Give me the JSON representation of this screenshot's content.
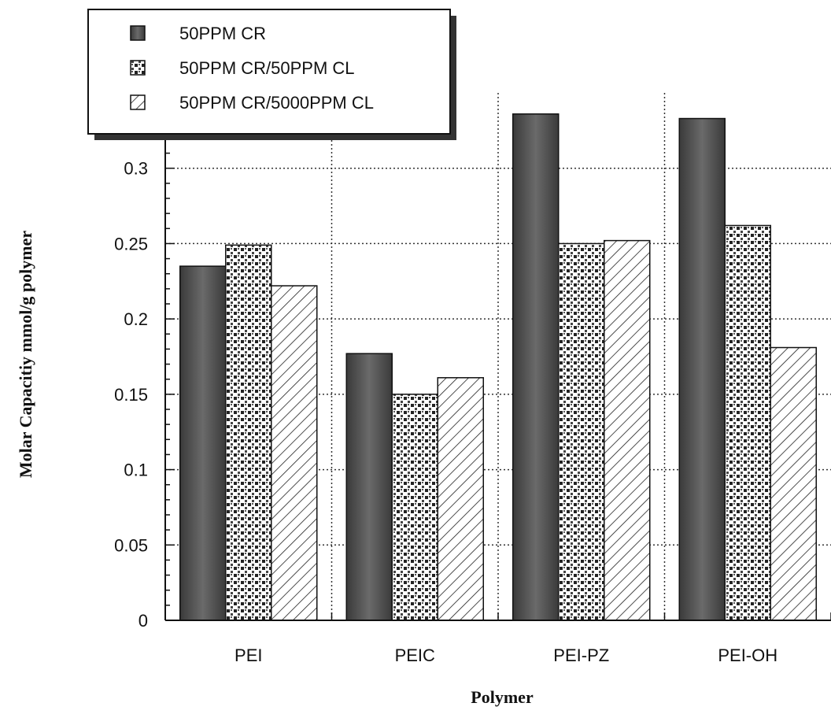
{
  "chart_data": {
    "type": "bar",
    "title": "",
    "xlabel": "Polymer",
    "ylabel": "Molar Capacitiy mmol/g polymer",
    "categories": [
      "PEI",
      "PEIC",
      "PEI-PZ",
      "PEI-OH"
    ],
    "series": [
      {
        "name": "50PPM CR",
        "values": [
          0.235,
          0.177,
          0.336,
          0.333
        ],
        "pattern": "dark",
        "color": "#555555"
      },
      {
        "name": "50PPM CR/50PPM CL",
        "values": [
          0.249,
          0.15,
          0.25,
          0.262
        ],
        "pattern": "dots",
        "color": "#3a3a3a"
      },
      {
        "name": "50PPM CR/5000PPM CL",
        "values": [
          0.222,
          0.161,
          0.252,
          0.181
        ],
        "pattern": "hatch",
        "color": "#ffffff"
      }
    ],
    "yticks": [
      "0",
      "0.05",
      "0.1",
      "0.15",
      "0.2",
      "0.25",
      "0.3"
    ],
    "ylim": [
      0,
      0.35
    ],
    "grid": true,
    "legend_position": "top-left"
  }
}
